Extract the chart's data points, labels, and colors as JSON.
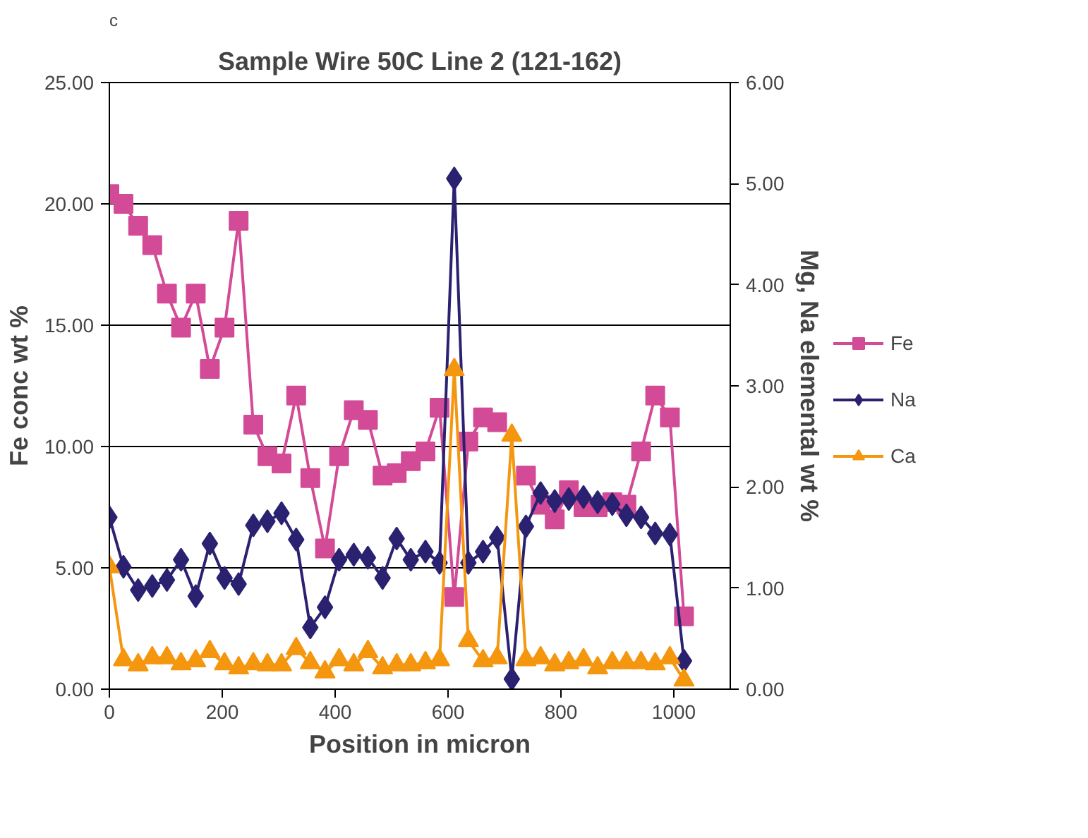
{
  "chart_data": {
    "type": "line",
    "title": "Sample Wire 50C Line 2 (121-162)",
    "annotations": [
      "c"
    ],
    "xlabel": "Position in micron",
    "ylabel": "Fe conc wt %",
    "y2label": "Mg, Na elemental wt %",
    "x": [
      0,
      25,
      51,
      76,
      102,
      127,
      153,
      178,
      204,
      229,
      255,
      280,
      305,
      331,
      356,
      382,
      407,
      433,
      458,
      484,
      509,
      534,
      560,
      585,
      611,
      636,
      662,
      687,
      713,
      738,
      764,
      789,
      814,
      840,
      865,
      891,
      916,
      942,
      967,
      993,
      1018
    ],
    "series": [
      {
        "name": "Fe",
        "color": "#d34a96",
        "marker": "square",
        "values": [
          20.4,
          20.0,
          19.1,
          18.3,
          16.3,
          14.9,
          16.3,
          13.2,
          14.9,
          19.3,
          10.9,
          9.6,
          9.3,
          12.1,
          8.7,
          5.8,
          9.6,
          11.5,
          11.1,
          8.8,
          8.9,
          9.4,
          9.8,
          11.6,
          3.8,
          10.2,
          11.2,
          11.0,
          null,
          8.8,
          7.6,
          7.0,
          8.2,
          7.5,
          7.5,
          7.7,
          7.6,
          9.8,
          12.1,
          11.2,
          3.0
        ]
      },
      {
        "name": "Na",
        "color": "#2b2171",
        "marker": "diamond",
        "axis": "y2",
        "values": [
          1.7,
          1.21,
          0.98,
          1.02,
          1.08,
          1.28,
          0.92,
          1.44,
          1.1,
          1.04,
          1.62,
          1.66,
          1.74,
          1.48,
          0.61,
          0.81,
          1.28,
          1.33,
          1.3,
          1.1,
          1.49,
          1.28,
          1.36,
          1.25,
          5.05,
          1.25,
          1.36,
          1.5,
          0.1,
          1.61,
          1.94,
          1.86,
          1.88,
          1.9,
          1.85,
          1.83,
          1.72,
          1.7,
          1.54,
          1.53,
          0.28
        ]
      },
      {
        "name": "Ca",
        "color": "#f5960f",
        "marker": "triangle",
        "axis": "y2",
        "values": [
          1.21,
          0.29,
          0.24,
          0.31,
          0.31,
          0.25,
          0.28,
          0.37,
          0.25,
          0.21,
          0.25,
          0.24,
          0.24,
          0.4,
          0.26,
          0.17,
          0.29,
          0.24,
          0.37,
          0.21,
          0.24,
          0.24,
          0.26,
          0.29,
          3.16,
          0.48,
          0.28,
          0.31,
          2.51,
          0.29,
          0.31,
          0.24,
          0.26,
          0.29,
          0.21,
          0.26,
          0.26,
          0.26,
          0.25,
          0.31,
          0.09
        ]
      }
    ],
    "xlim": [
      0,
      1100
    ],
    "xticks": [
      0,
      200,
      400,
      600,
      800,
      1000
    ],
    "ylim": [
      0,
      25
    ],
    "yticks": [
      {
        "value": 0,
        "label": "0.00"
      },
      {
        "value": 5,
        "label": "5.00"
      },
      {
        "value": 10,
        "label": "10.00"
      },
      {
        "value": 15,
        "label": "15.00"
      },
      {
        "value": 20,
        "label": "20.00"
      },
      {
        "value": 25,
        "label": "25.00"
      }
    ],
    "y2lim": [
      0,
      6
    ],
    "y2ticks": [
      {
        "value": 0,
        "label": "0.00"
      },
      {
        "value": 1,
        "label": "1.00"
      },
      {
        "value": 2,
        "label": "2.00"
      },
      {
        "value": 3,
        "label": "3.00"
      },
      {
        "value": 4,
        "label": "4.00"
      },
      {
        "value": 5,
        "label": "5.00"
      },
      {
        "value": 6,
        "label": "6.00"
      }
    ],
    "grid": "y",
    "legend": "right",
    "line_style": "solid"
  }
}
